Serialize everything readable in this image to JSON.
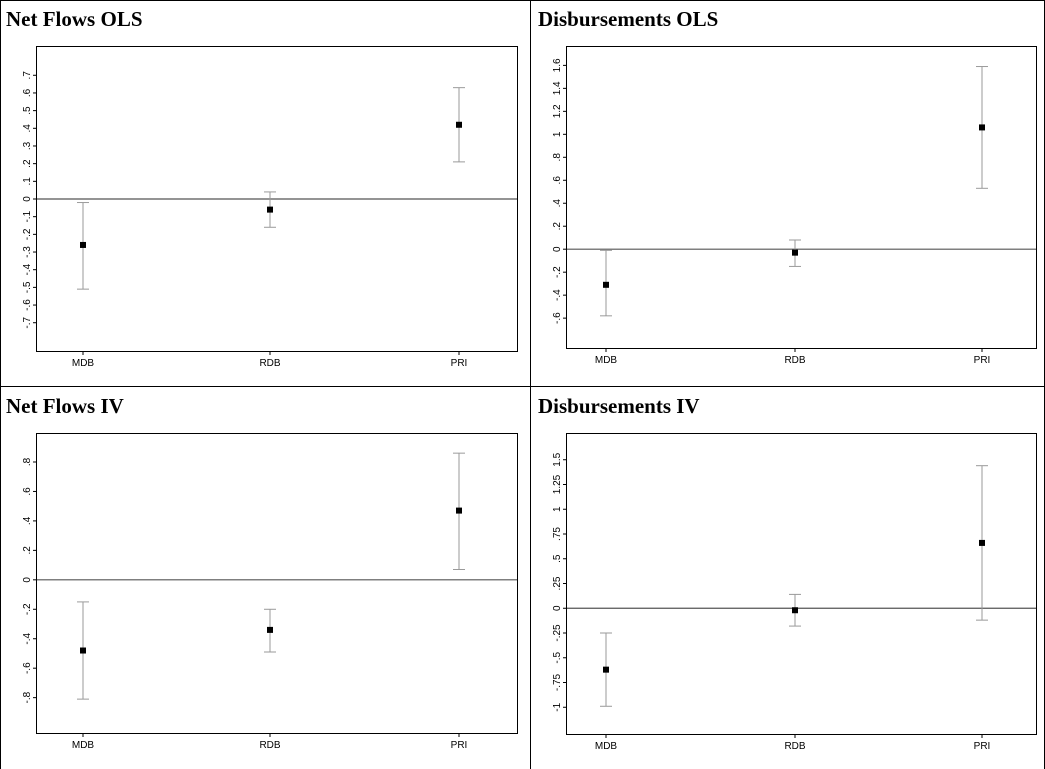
{
  "chart_data": [
    {
      "type": "scatter",
      "title": "Net Flows OLS",
      "categories": [
        "MDB",
        "RDB",
        "PRI"
      ],
      "estimates": [
        -0.26,
        -0.06,
        0.42
      ],
      "ci_low": [
        -0.51,
        -0.16,
        0.21
      ],
      "ci_high": [
        -0.02,
        0.04,
        0.63
      ],
      "ylim": [
        -0.86,
        0.86
      ],
      "yticks": [
        -0.7,
        -0.6,
        -0.5,
        -0.4,
        -0.3,
        -0.2,
        -0.1,
        0,
        0.1,
        0.2,
        0.3,
        0.4,
        0.5,
        0.6,
        0.7
      ],
      "ytick_labels": [
        "-.7",
        "-.6",
        "-.5",
        "-.4",
        "-.3",
        "-.2",
        "-.1",
        "0",
        ".1",
        ".2",
        ".3",
        ".4",
        ".5",
        ".6",
        ".7"
      ],
      "reference_line": 0,
      "grid": false
    },
    {
      "type": "scatter",
      "title": "Disbursements OLS",
      "categories": [
        "MDB",
        "RDB",
        "PRI"
      ],
      "estimates": [
        -0.31,
        -0.03,
        1.06
      ],
      "ci_low": [
        -0.58,
        -0.15,
        0.53
      ],
      "ci_high": [
        -0.01,
        0.08,
        1.59
      ],
      "ylim": [
        -0.86,
        1.76
      ],
      "yticks": [
        -0.6,
        -0.4,
        -0.2,
        0,
        0.2,
        0.4,
        0.6,
        0.8,
        1,
        1.2,
        1.4,
        1.6
      ],
      "ytick_labels": [
        "-.6",
        "-.4",
        "-.2",
        "0",
        ".2",
        ".4",
        ".6",
        ".8",
        "1",
        "1.2",
        "1.4",
        "1.6"
      ],
      "reference_line": 0,
      "grid": false
    },
    {
      "type": "scatter",
      "title": "Net Flows IV",
      "categories": [
        "MDB",
        "RDB",
        "PRI"
      ],
      "estimates": [
        -0.48,
        -0.34,
        0.47
      ],
      "ci_low": [
        -0.81,
        -0.49,
        0.07
      ],
      "ci_high": [
        -0.15,
        -0.2,
        0.86
      ],
      "ylim": [
        -1.04,
        0.99
      ],
      "yticks": [
        -0.8,
        -0.6,
        -0.4,
        -0.2,
        0,
        0.2,
        0.4,
        0.6,
        0.8
      ],
      "ytick_labels": [
        "-.8",
        "-.6",
        "-.4",
        "-.2",
        "0",
        ".2",
        ".4",
        ".6",
        ".8"
      ],
      "reference_line": 0,
      "grid": false
    },
    {
      "type": "scatter",
      "title": "Disbursements IV",
      "categories": [
        "MDB",
        "RDB",
        "PRI"
      ],
      "estimates": [
        -0.62,
        -0.02,
        0.66
      ],
      "ci_low": [
        -0.99,
        -0.18,
        -0.12
      ],
      "ci_high": [
        -0.25,
        0.14,
        1.44
      ],
      "ylim": [
        -1.27,
        1.76
      ],
      "yticks": [
        -1,
        -0.75,
        -0.5,
        -0.25,
        0,
        0.25,
        0.5,
        0.75,
        1,
        1.25,
        1.5
      ],
      "ytick_labels": [
        "-1",
        "-.75",
        "-.5",
        "-.25",
        "0",
        ".25",
        ".5",
        ".75",
        "1",
        "1.25",
        "1.5"
      ],
      "reference_line": 0,
      "grid": false
    }
  ]
}
